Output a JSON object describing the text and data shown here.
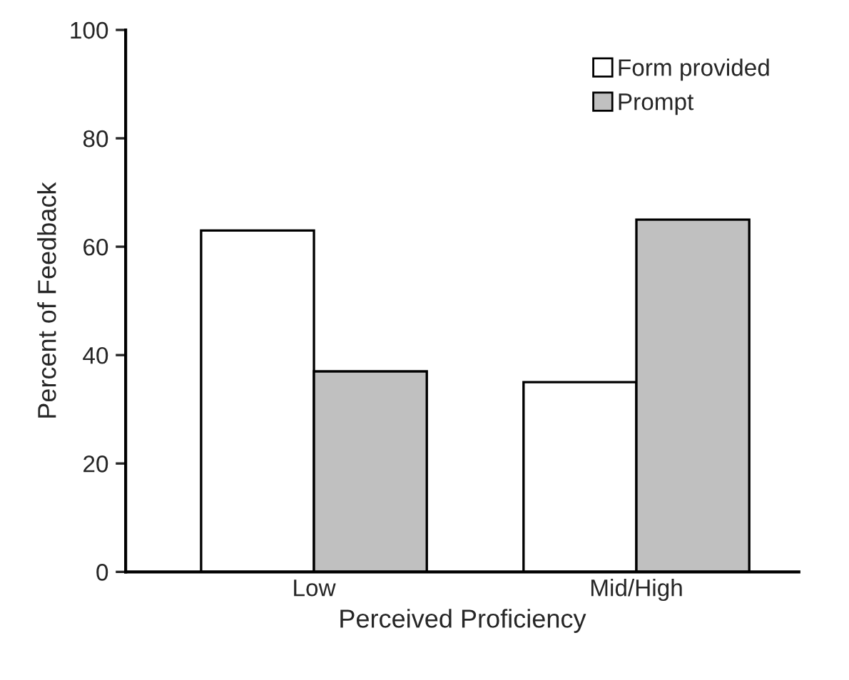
{
  "chart_data": {
    "type": "bar",
    "xlabel": "Perceived Proficiency",
    "ylabel": "Percent of Feedback",
    "categories": [
      "Low",
      "Mid/High"
    ],
    "series": [
      {
        "name": "Form provided",
        "color": "#ffffff",
        "values": [
          63,
          35
        ]
      },
      {
        "name": "Prompt",
        "color": "#c0c0c0",
        "values": [
          37,
          65
        ]
      }
    ],
    "ylim": [
      0,
      100
    ],
    "yticks": [
      0,
      20,
      40,
      60,
      80,
      100
    ],
    "grid": false,
    "legend": "top right"
  }
}
